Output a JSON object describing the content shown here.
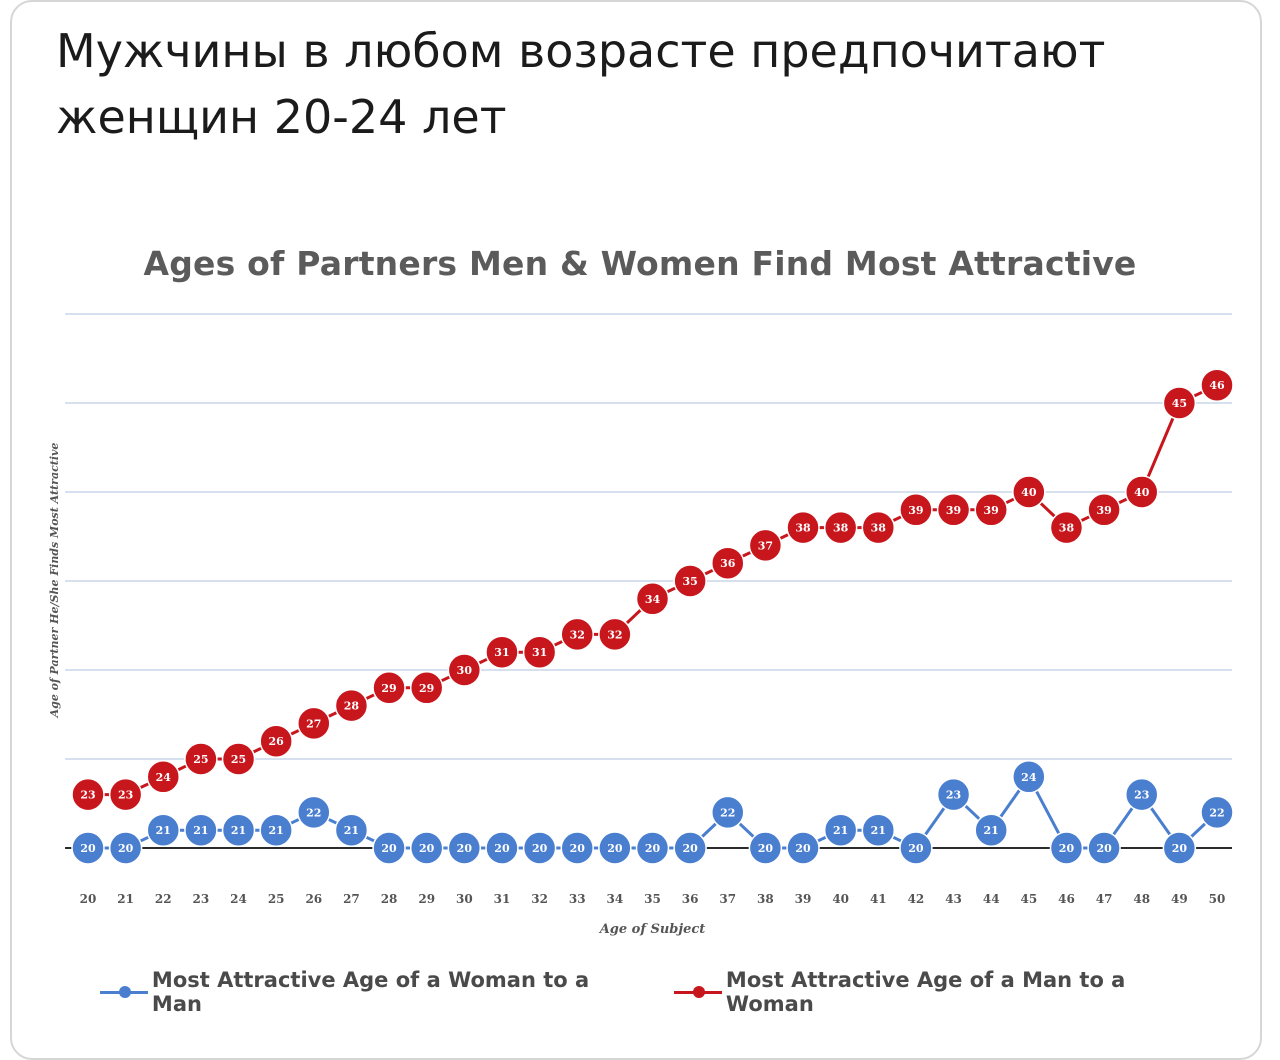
{
  "post": {
    "title": "Мужчины в любом возрасте предпочитают женщин 20-24 лет"
  },
  "chart_data": {
    "type": "line",
    "title": "Ages of Partners Men & Women Find Most Attractive",
    "xlabel": "Age of Subject",
    "ylabel": "Age of Partner He/She Finds Most Attractive",
    "x": [
      20,
      21,
      22,
      23,
      24,
      25,
      26,
      27,
      28,
      29,
      30,
      31,
      32,
      33,
      34,
      35,
      36,
      37,
      38,
      39,
      40,
      41,
      42,
      43,
      44,
      45,
      46,
      47,
      48,
      49,
      50
    ],
    "series": [
      {
        "name": "Most Attractive Age of a Woman to a Man",
        "color": "#4a7fd0",
        "values": [
          20,
          20,
          21,
          21,
          21,
          21,
          22,
          21,
          20,
          20,
          20,
          20,
          20,
          20,
          20,
          20,
          20,
          22,
          20,
          20,
          21,
          21,
          20,
          23,
          21,
          24,
          20,
          20,
          23,
          20,
          22
        ]
      },
      {
        "name": "Most Attractive Age of a Man to a Woman",
        "color": "#c8161d",
        "values": [
          23,
          23,
          24,
          25,
          25,
          26,
          27,
          28,
          29,
          29,
          30,
          31,
          31,
          32,
          32,
          34,
          35,
          36,
          37,
          38,
          38,
          38,
          39,
          39,
          39,
          40,
          38,
          39,
          40,
          45,
          46
        ]
      }
    ],
    "ylim": [
      20,
      50
    ],
    "grid": true,
    "legend_position": "bottom"
  }
}
